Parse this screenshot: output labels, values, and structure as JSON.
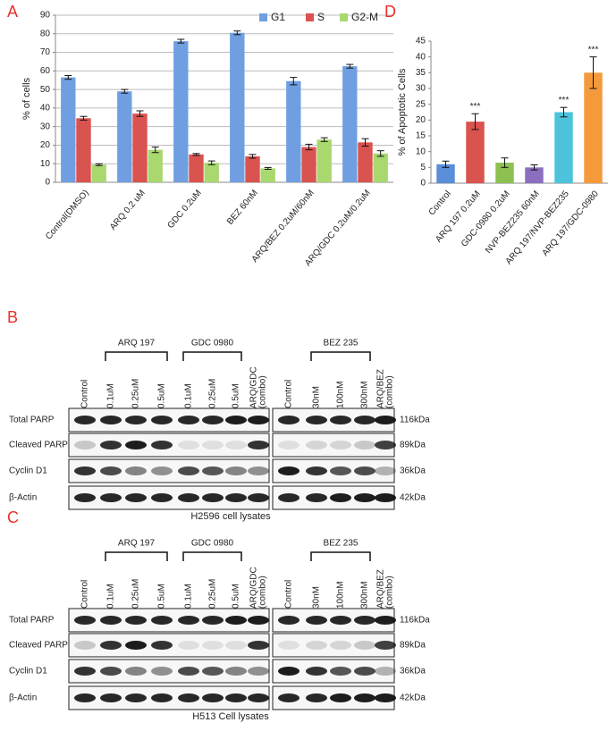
{
  "chart_data": [
    {
      "type": "bar",
      "panel": "A",
      "y_label": "% of cells",
      "categories": [
        "Control(DMSO)",
        "ARQ 0.2 uM",
        "GDC 0.2uM",
        "BEZ 60nM",
        "ARQ/BEZ 0.2uM/60nM",
        "ARQ/GDC 0.2uM/0.2uM"
      ],
      "series": [
        {
          "name": "G1",
          "color": "#6f9fe0",
          "values": [
            56.5,
            49,
            76,
            80.5,
            54.5,
            62.5
          ],
          "errors": [
            1,
            1,
            1,
            1,
            2,
            1
          ]
        },
        {
          "name": "S",
          "color": "#d9534f",
          "values": [
            34.5,
            37,
            15,
            14,
            19,
            21.5
          ],
          "errors": [
            1,
            1.5,
            0.5,
            1,
            1.5,
            2
          ]
        },
        {
          "name": "G2-M",
          "color": "#a8d86e",
          "values": [
            9.5,
            17.5,
            10.5,
            7.5,
            23,
            15.5
          ],
          "errors": [
            0.5,
            1.5,
            1,
            0.5,
            1,
            1.5
          ]
        }
      ],
      "ylim": [
        0,
        90
      ],
      "yticks": [
        0,
        10,
        20,
        30,
        40,
        50,
        60,
        70,
        80,
        90
      ],
      "grid": true,
      "legend": "top-right"
    },
    {
      "type": "bar",
      "panel": "D",
      "y_label": "% of Apoptotic Cells",
      "categories": [
        "Control",
        "ARQ 197 0.2uM",
        "GDC-0980 0.2uM",
        "NVP-BEZ235 60nM",
        "ARQ 197/NVP-BEZ235",
        "ARQ 197/GDC-0980"
      ],
      "values": [
        6,
        19.5,
        6.5,
        5,
        22.5,
        35
      ],
      "errors": [
        1,
        2.5,
        1.5,
        0.8,
        1.5,
        5
      ],
      "colors": [
        "#5b8ed8",
        "#d9534f",
        "#8cc152",
        "#8a6fc0",
        "#4cc3dc",
        "#f59a3c"
      ],
      "annotations": [
        null,
        "***",
        null,
        null,
        "***",
        "***"
      ],
      "ylim": [
        0,
        45
      ],
      "yticks": [
        0,
        5,
        10,
        15,
        20,
        25,
        30,
        35,
        40,
        45
      ],
      "grid": false
    }
  ],
  "blots": [
    {
      "panel": "B",
      "groups": [
        "ARQ 197",
        "GDC 0980",
        "BEZ 235"
      ],
      "left_lanes": [
        "Control",
        "0.1uM",
        "0.25uM",
        "0.5uM",
        "0.1uM",
        "0.25uM",
        "0.5uM",
        [
          "ARQ/GDC",
          "(combo)"
        ]
      ],
      "right_lanes": [
        "Control",
        "30nM",
        "100nM",
        "300nM",
        [
          "ARQ/BEZ",
          "(combo)"
        ]
      ],
      "rows": [
        {
          "name": "Total PARP",
          "size": "116kDa"
        },
        {
          "name": "Cleaved PARP",
          "size": "89kDa"
        },
        {
          "name": "Cyclin D1",
          "size": "36kDa"
        },
        {
          "name": "β-Actin",
          "size": "42kDa"
        }
      ],
      "caption": "H2596 cell lysates"
    },
    {
      "panel": "C",
      "groups": [
        "ARQ 197",
        "GDC 0980",
        "BEZ 235"
      ],
      "left_lanes": [
        "Control",
        "0.1uM",
        "0.25uM",
        "0.5uM",
        "0.1uM",
        "0.25uM",
        "0.5uM",
        [
          "ARQ/GDC",
          "(combo)"
        ]
      ],
      "right_lanes": [
        "Control",
        "30nM",
        "100nM",
        "300nM",
        [
          "ARQ/BEZ",
          "(combo)"
        ]
      ],
      "rows": [
        {
          "name": "Total PARP",
          "size": "116kDa"
        },
        {
          "name": "Cleaved PARP",
          "size": "89kDa"
        },
        {
          "name": "Cyclin D1",
          "size": "36kDa"
        },
        {
          "name": "β-Actin",
          "size": "42kDa"
        }
      ],
      "caption": "H513 Cell lysates"
    }
  ]
}
